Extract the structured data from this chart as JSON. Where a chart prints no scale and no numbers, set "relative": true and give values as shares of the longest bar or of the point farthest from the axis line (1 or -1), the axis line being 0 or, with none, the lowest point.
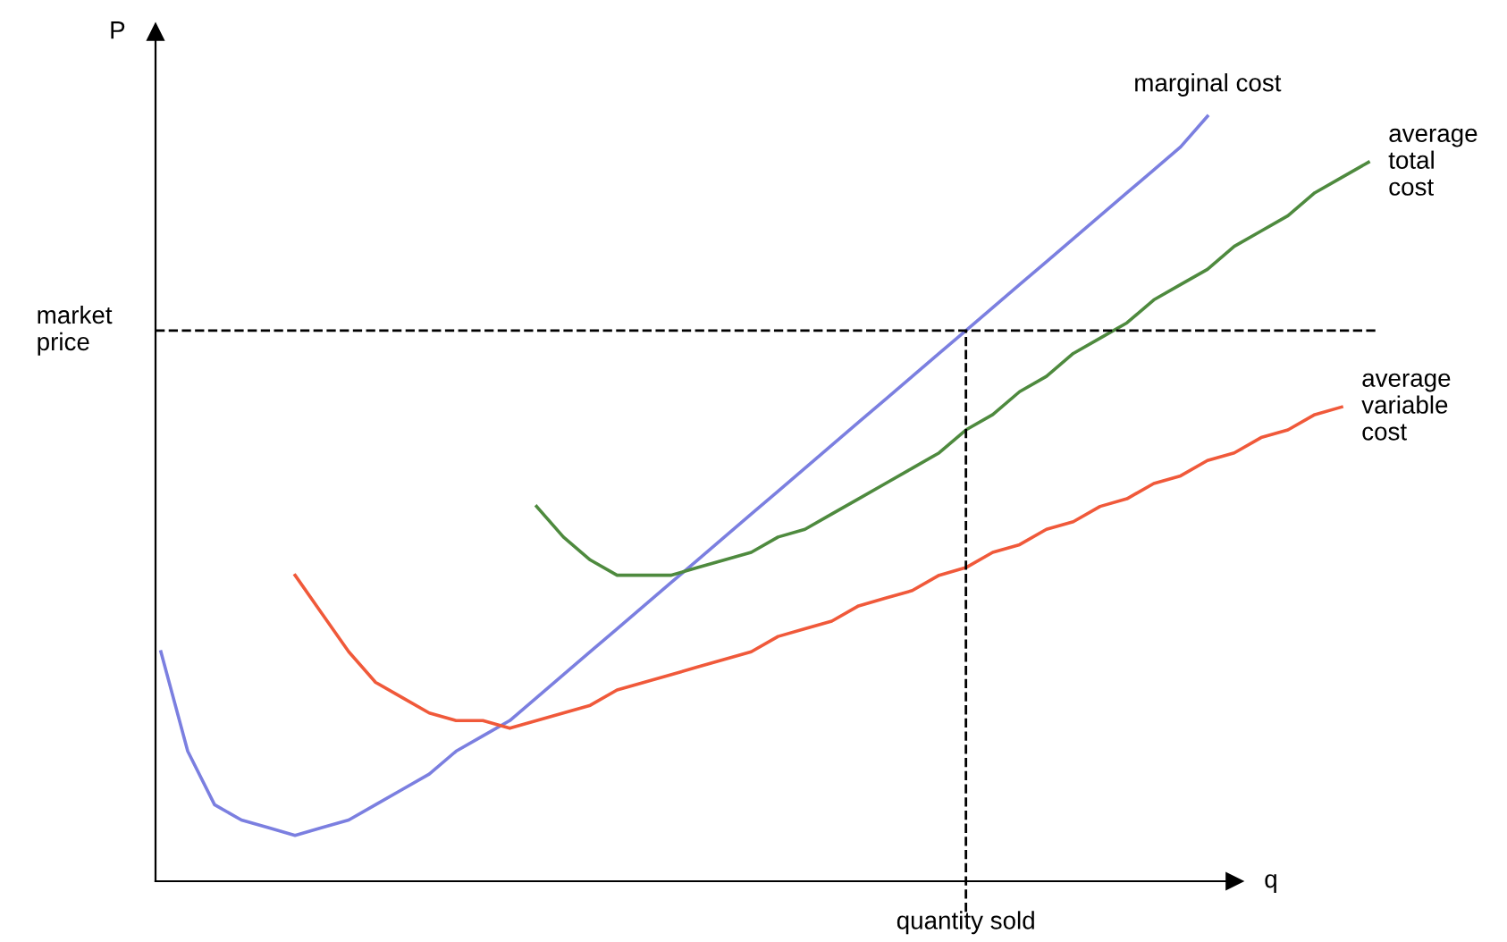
{
  "chart_data": {
    "type": "line",
    "relative": true,
    "xlabel": "q",
    "ylabel": "P",
    "categories": [
      null,
      null,
      null,
      null,
      null,
      null,
      null,
      null,
      null,
      null,
      null,
      null,
      null,
      null,
      null,
      null,
      null,
      null,
      null,
      null,
      null,
      null,
      null,
      null,
      null,
      null,
      null,
      null,
      null,
      null,
      null,
      null,
      null,
      null,
      null,
      null,
      null,
      null,
      null,
      null,
      null,
      null,
      null,
      null,
      null,
      null
    ],
    "series": [
      {
        "name": "marginal cost",
        "color": "#7b7fe0",
        "values": [
          0.3,
          0.17,
          0.1,
          0.08,
          0.07,
          0.06,
          0.07,
          0.08,
          0.1,
          0.12,
          0.14,
          0.17,
          0.19,
          0.21,
          0.24,
          0.27,
          0.3,
          0.33,
          0.36,
          0.39,
          0.42,
          0.45,
          0.48,
          0.51,
          0.54,
          0.57,
          0.6,
          0.63,
          0.66,
          0.69,
          0.72,
          0.75,
          0.78,
          0.81,
          0.84,
          0.87,
          0.9,
          0.93,
          0.96,
          1.0,
          null,
          null,
          null,
          null,
          null,
          null
        ]
      },
      {
        "name": "average\ntotal\ncost",
        "color": "#4e8a3e",
        "values": [
          null,
          null,
          null,
          null,
          null,
          null,
          null,
          null,
          null,
          null,
          null,
          null,
          null,
          null,
          0.49,
          0.45,
          0.42,
          0.4,
          0.4,
          0.4,
          0.41,
          0.42,
          0.43,
          0.45,
          0.46,
          0.48,
          0.5,
          0.52,
          0.54,
          0.56,
          0.59,
          0.61,
          0.64,
          0.66,
          0.69,
          0.71,
          0.73,
          0.76,
          0.78,
          0.8,
          0.83,
          0.85,
          0.87,
          0.9,
          0.92,
          0.94
        ]
      },
      {
        "name": "average\nvariable\ncost",
        "color": "#f0593a",
        "values": [
          null,
          null,
          null,
          null,
          null,
          0.4,
          0.35,
          0.3,
          0.26,
          0.24,
          0.22,
          0.21,
          0.21,
          0.2,
          0.21,
          0.22,
          0.23,
          0.25,
          0.26,
          0.27,
          0.28,
          0.29,
          0.3,
          0.32,
          0.33,
          0.34,
          0.36,
          0.37,
          0.38,
          0.4,
          0.41,
          0.43,
          0.44,
          0.46,
          0.47,
          0.49,
          0.5,
          0.52,
          0.53,
          0.55,
          0.56,
          0.58,
          0.59,
          0.61,
          0.62,
          null
        ]
      }
    ],
    "ref_lines": [
      {
        "axis": "y",
        "value": 0.72,
        "label": "market\nprice",
        "line_style": "dashed",
        "color": "#000000"
      }
    ],
    "annotations": [
      "quantity sold"
    ],
    "tick_labels": false,
    "legend": false
  }
}
